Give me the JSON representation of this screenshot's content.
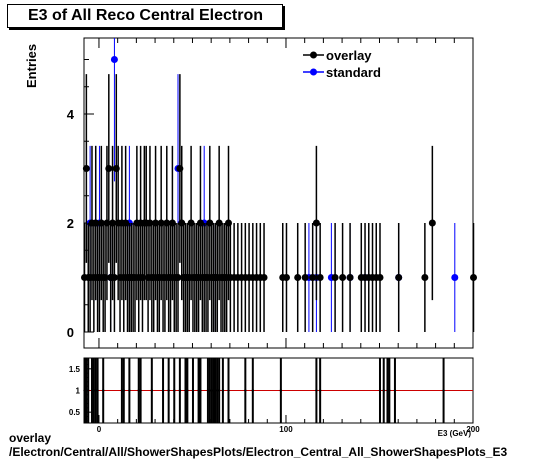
{
  "title": "E3 of All Reco Central Electron",
  "footer_line1": "overlay",
  "footer_line2": "/Electron/Central/All/ShowerShapesPlots/Electron_Central_All_ShowerShapesPlots_E3",
  "colors": {
    "overlay": "#000000",
    "standard": "#0000ff",
    "ratio_line": "#cc0000"
  },
  "chart_data": [
    {
      "type": "scatter",
      "title": "E3 of All Reco Central Electron",
      "xlabel": "E3 (GeV)",
      "ylabel": "Entries",
      "xlim": [
        -8,
        200
      ],
      "ylim": [
        -0.2,
        5.2
      ],
      "yticks": [
        0,
        2,
        4
      ],
      "legend_position": "top-right",
      "series": [
        {
          "name": "overlay",
          "color": "#000000",
          "x": [
            -8,
            -7,
            -6,
            -5,
            -4,
            -3,
            -2,
            -1,
            0,
            1,
            2,
            3,
            4,
            5,
            6,
            7,
            8,
            9,
            10,
            11,
            12,
            13,
            14,
            15,
            16,
            17,
            18,
            19,
            20,
            21,
            22,
            23,
            24,
            25,
            26,
            27,
            28,
            29,
            30,
            31,
            32,
            33,
            34,
            35,
            36,
            37,
            38,
            39,
            40,
            41,
            42,
            43,
            44,
            45,
            46,
            47,
            48,
            49,
            50,
            51,
            52,
            53,
            54,
            55,
            56,
            57,
            58,
            59,
            60,
            61,
            62,
            63,
            64,
            65,
            66,
            67,
            68,
            69,
            70,
            72,
            74,
            76,
            78,
            80,
            82,
            84,
            86,
            88,
            98,
            100,
            106,
            110,
            114,
            116,
            118,
            126,
            130,
            134,
            140,
            142,
            144,
            146,
            148,
            150,
            160,
            174,
            178,
            200
          ],
          "y": [
            1,
            3,
            1,
            1,
            2,
            1,
            2,
            1,
            1,
            2,
            1,
            1,
            2,
            3,
            1,
            2,
            1,
            3,
            2,
            1,
            2,
            1,
            2,
            1,
            1,
            1,
            1,
            1,
            2,
            1,
            2,
            1,
            2,
            2,
            1,
            2,
            1,
            1,
            2,
            1,
            1,
            2,
            1,
            1,
            2,
            1,
            1,
            2,
            1,
            1,
            1,
            3,
            2,
            1,
            1,
            1,
            1,
            2,
            1,
            1,
            1,
            1,
            2,
            1,
            1,
            1,
            1,
            2,
            1,
            1,
            1,
            1,
            2,
            1,
            1,
            1,
            1,
            2,
            1,
            1,
            1,
            1,
            1,
            1,
            1,
            1,
            1,
            1,
            1,
            1,
            1,
            1,
            1,
            2,
            1,
            1,
            1,
            1,
            1,
            1,
            1,
            1,
            1,
            1,
            1,
            1,
            2,
            1
          ]
        },
        {
          "name": "standard",
          "color": "#0000ff",
          "x": [
            -5,
            -2,
            0,
            6,
            8,
            16,
            42,
            46,
            56,
            62,
            112,
            116,
            124,
            134,
            142,
            160,
            190
          ],
          "y": [
            2,
            2,
            2,
            1,
            5,
            2,
            3,
            1,
            2,
            1,
            1,
            1,
            1,
            1,
            1,
            1,
            1
          ]
        }
      ]
    },
    {
      "type": "line",
      "title": "",
      "xlim": [
        -8,
        200
      ],
      "ylim": [
        0.25,
        1.75
      ],
      "yticks": [
        0.5,
        1,
        1.5
      ],
      "xticks": [
        0,
        100,
        200
      ],
      "reference_value": 1,
      "spike_x": [
        -8,
        -7,
        -6,
        -4,
        -3,
        -2,
        -1,
        2,
        12,
        13,
        16,
        21,
        22,
        28,
        34,
        37,
        40,
        43,
        46,
        47,
        50,
        53,
        54,
        58,
        59,
        60,
        61,
        62,
        63,
        64,
        66,
        69,
        78,
        82,
        97,
        116,
        118,
        150,
        152,
        154,
        155,
        158,
        184
      ]
    }
  ]
}
